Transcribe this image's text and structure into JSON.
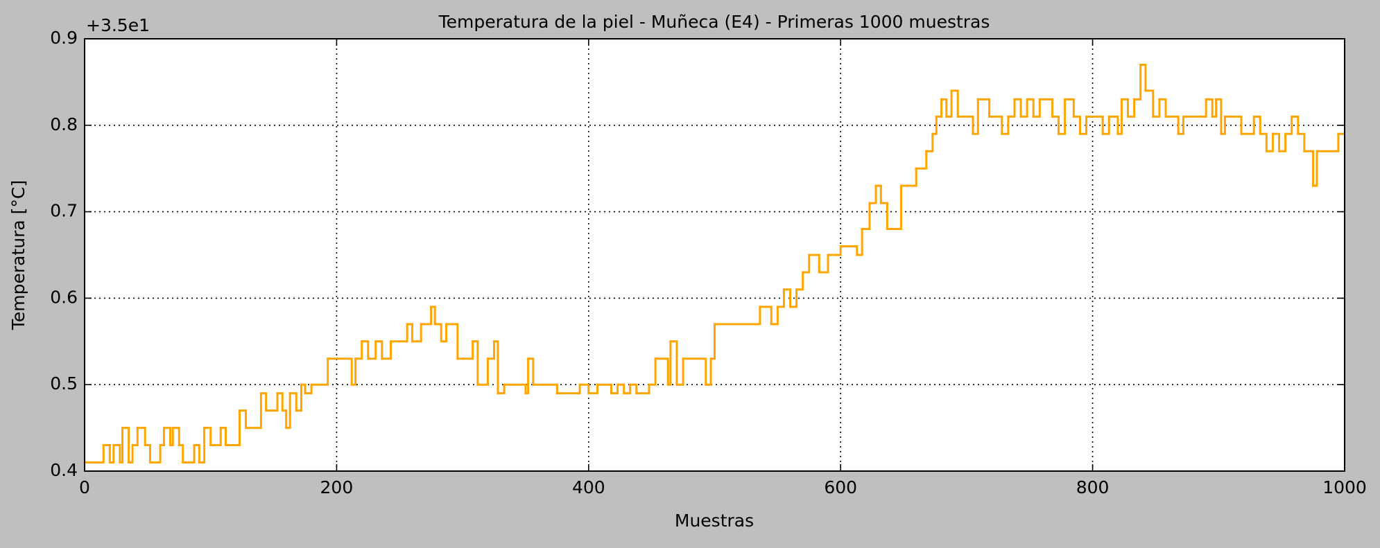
{
  "chart_data": {
    "type": "line",
    "step": "post",
    "title": "Temperatura de la piel - Muñeca (E4) - Primeras 1000 muestras",
    "x_label": "Muestras",
    "y_label": "Temperatura [°C]",
    "offset_text": "+3.5e1",
    "xlim": [
      0,
      1000
    ],
    "ylim": [
      0.4,
      0.9
    ],
    "xticks": [
      0,
      200,
      400,
      600,
      800,
      1000
    ],
    "yticks": [
      0.4,
      0.5,
      0.6,
      0.7,
      0.8,
      0.9
    ],
    "grid": true,
    "series": [
      {
        "color": "#ffa500",
        "x": [
          0,
          15,
          20,
          23,
          28,
          30,
          35,
          38,
          42,
          48,
          52,
          60,
          63,
          68,
          70,
          75,
          78,
          87,
          91,
          95,
          100,
          108,
          112,
          123,
          128,
          140,
          144,
          153,
          157,
          160,
          163,
          168,
          172,
          175,
          180,
          193,
          212,
          215,
          220,
          225,
          231,
          236,
          243,
          256,
          260,
          267,
          275,
          278,
          283,
          287,
          296,
          308,
          312,
          320,
          325,
          328,
          333,
          350,
          352,
          356,
          375,
          393,
          400,
          407,
          418,
          423,
          428,
          433,
          438,
          448,
          453,
          463,
          465,
          470,
          475,
          493,
          497,
          500,
          536,
          545,
          550,
          555,
          560,
          565,
          570,
          575,
          583,
          590,
          600,
          613,
          617,
          623,
          628,
          632,
          637,
          648,
          660,
          668,
          673,
          676,
          680,
          684,
          688,
          693,
          705,
          709,
          718,
          728,
          733,
          738,
          743,
          748,
          753,
          758,
          768,
          773,
          778,
          785,
          790,
          795,
          808,
          813,
          820,
          823,
          828,
          833,
          838,
          842,
          848,
          853,
          858,
          868,
          872,
          890,
          895,
          898,
          902,
          905,
          918,
          928,
          933,
          938,
          943,
          948,
          953,
          958,
          963,
          968,
          975,
          978,
          995,
          999
        ],
        "values": [
          0.41,
          0.43,
          0.41,
          0.43,
          0.41,
          0.45,
          0.41,
          0.43,
          0.45,
          0.43,
          0.41,
          0.43,
          0.45,
          0.43,
          0.45,
          0.43,
          0.41,
          0.43,
          0.41,
          0.45,
          0.43,
          0.45,
          0.43,
          0.47,
          0.45,
          0.49,
          0.47,
          0.49,
          0.47,
          0.45,
          0.49,
          0.47,
          0.5,
          0.49,
          0.5,
          0.53,
          0.5,
          0.53,
          0.55,
          0.53,
          0.55,
          0.53,
          0.55,
          0.57,
          0.55,
          0.57,
          0.59,
          0.57,
          0.55,
          0.57,
          0.53,
          0.55,
          0.5,
          0.53,
          0.55,
          0.49,
          0.5,
          0.49,
          0.53,
          0.5,
          0.49,
          0.5,
          0.49,
          0.5,
          0.49,
          0.5,
          0.49,
          0.5,
          0.49,
          0.5,
          0.53,
          0.5,
          0.55,
          0.5,
          0.53,
          0.5,
          0.53,
          0.57,
          0.59,
          0.57,
          0.59,
          0.61,
          0.59,
          0.61,
          0.63,
          0.65,
          0.63,
          0.65,
          0.66,
          0.65,
          0.68,
          0.71,
          0.73,
          0.71,
          0.68,
          0.73,
          0.75,
          0.77,
          0.79,
          0.81,
          0.83,
          0.81,
          0.84,
          0.81,
          0.79,
          0.83,
          0.81,
          0.79,
          0.81,
          0.83,
          0.81,
          0.83,
          0.81,
          0.83,
          0.81,
          0.79,
          0.83,
          0.81,
          0.79,
          0.81,
          0.79,
          0.81,
          0.79,
          0.83,
          0.81,
          0.83,
          0.87,
          0.84,
          0.81,
          0.83,
          0.81,
          0.79,
          0.81,
          0.83,
          0.81,
          0.83,
          0.79,
          0.81,
          0.79,
          0.81,
          0.79,
          0.77,
          0.79,
          0.77,
          0.79,
          0.81,
          0.79,
          0.77,
          0.73,
          0.77,
          0.79,
          0.79
        ]
      }
    ]
  }
}
